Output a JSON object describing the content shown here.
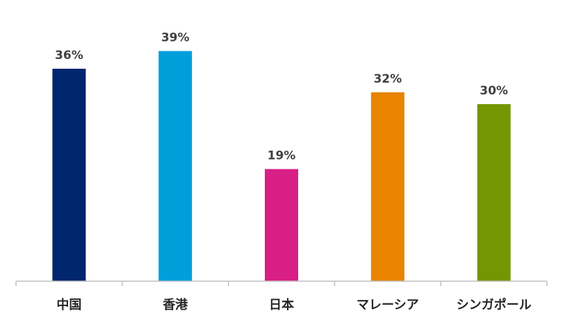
{
  "chart_data": {
    "type": "bar",
    "categories": [
      "中国",
      "香港",
      "日本",
      "マレーシア",
      "シンガポール"
    ],
    "values": [
      36,
      39,
      19,
      32,
      30
    ],
    "value_labels": [
      "36%",
      "39%",
      "19%",
      "32%",
      "30%"
    ],
    "colors": [
      "#00266F",
      "#009FDA",
      "#D81F86",
      "#E88400",
      "#749600"
    ],
    "title": "",
    "xlabel": "",
    "ylabel": "",
    "ylim": [
      0,
      40
    ],
    "grid": false,
    "legend": "none",
    "axis_color": "#BFBFBF"
  }
}
